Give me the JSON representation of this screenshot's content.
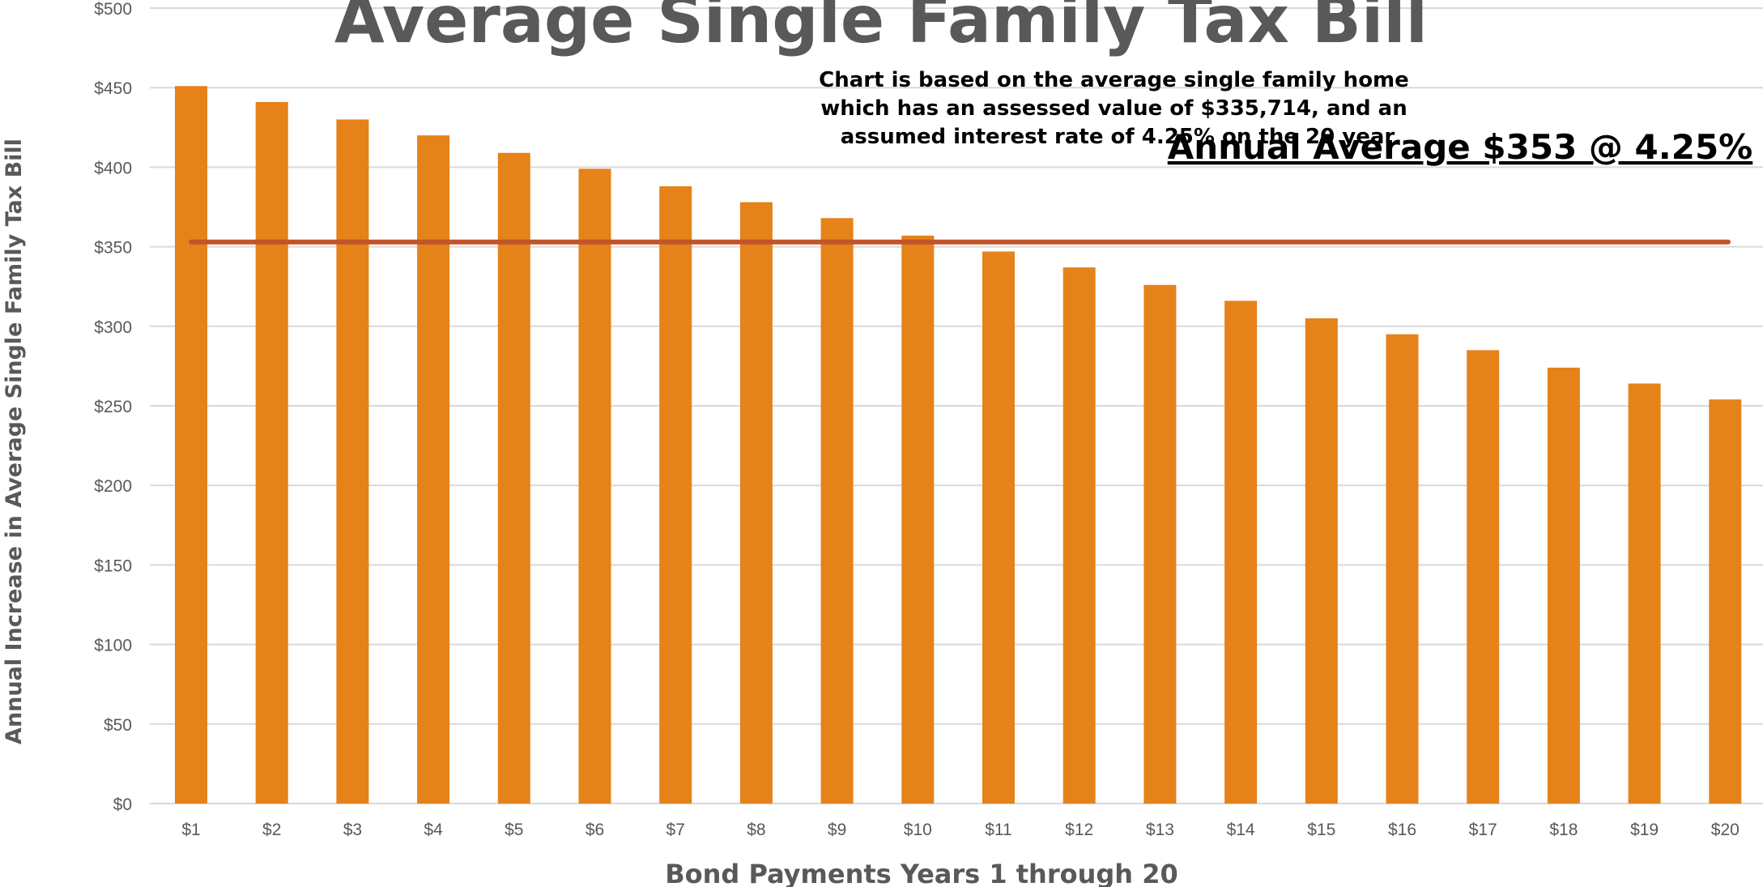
{
  "chart_data": {
    "type": "bar",
    "title": "Average Single Family Tax Bill",
    "xlabel": "Bond Payments Years 1 through 20",
    "ylabel": "Annual Increase in Average Single Family Tax Bill",
    "categories": [
      "$1",
      "$2",
      "$3",
      "$4",
      "$5",
      "$6",
      "$7",
      "$8",
      "$9",
      "$10",
      "$11",
      "$12",
      "$13",
      "$14",
      "$15",
      "$16",
      "$17",
      "$18",
      "$19",
      "$20"
    ],
    "values": [
      451,
      441,
      430,
      420,
      409,
      399,
      388,
      378,
      368,
      357,
      347,
      337,
      326,
      316,
      305,
      295,
      285,
      274,
      264,
      254
    ],
    "ylim": [
      0,
      500
    ],
    "yticks": [
      0,
      50,
      100,
      150,
      200,
      250,
      300,
      350,
      400,
      450,
      500
    ],
    "ytick_labels": [
      "$0",
      "$50",
      "$100",
      "$150",
      "$200",
      "$250",
      "$300",
      "$350",
      "$400",
      "$450",
      "$500"
    ],
    "average_line": {
      "value": 353,
      "label": "Annual Average $353 @ 4.25%"
    },
    "annotation": [
      "Chart is based on the average single family home",
      "which has an assessed value of $335,714, and an",
      "assumed interest rate of 4.25% on the 20 year"
    ],
    "grid": true,
    "legend": "none",
    "colors": {
      "bar": "#E5821A",
      "average_line": "#C0542A",
      "grid": "#D9D9D9",
      "text": "#595959"
    }
  }
}
